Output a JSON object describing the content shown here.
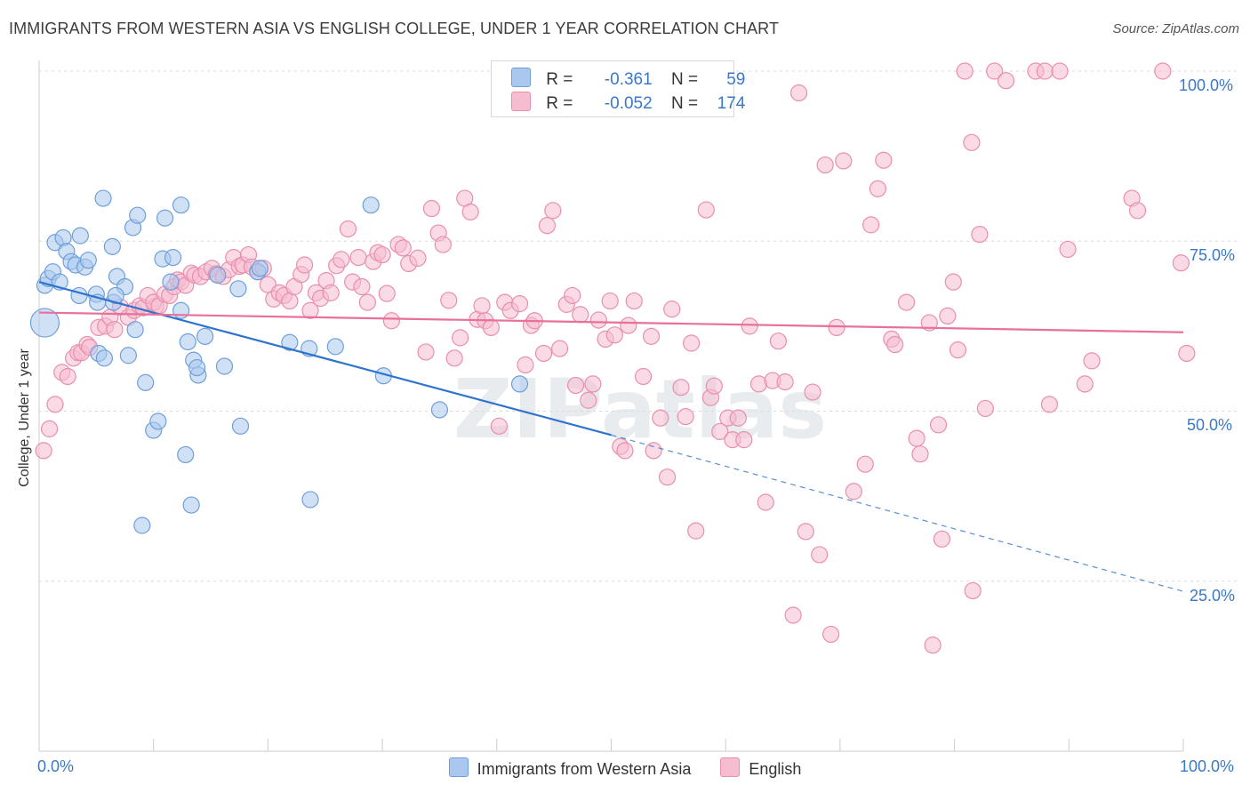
{
  "title": "IMMIGRANTS FROM WESTERN ASIA VS ENGLISH COLLEGE, UNDER 1 YEAR CORRELATION CHART",
  "source": "Source: ZipAtlas.com",
  "watermark": "ZIPatlas",
  "legend": {
    "rows": [
      {
        "r_label": "R =",
        "r_value": "-0.361",
        "n_label": "N =",
        "n_value": "59"
      },
      {
        "r_label": "R =",
        "r_value": "-0.052",
        "n_label": "N =",
        "n_value": "174"
      }
    ]
  },
  "bottom_legend": [
    "Immigrants from Western Asia",
    "English"
  ],
  "axis": {
    "x_min_label": "0.0%",
    "x_max_label": "100.0%",
    "y_labels": [
      "100.0%",
      "75.0%",
      "50.0%",
      "25.0%"
    ],
    "ylabel": "College, Under 1 year"
  },
  "colors": {
    "blue_fill": "#aac8ef",
    "blue_stroke": "#6f9fd9",
    "blue_line": "#2e74cf",
    "pink_fill": "#f6bcd0",
    "pink_stroke": "#e98fae",
    "pink_line": "#e8709a",
    "axis_label": "#3a78c9"
  },
  "chart_data": {
    "type": "scatter",
    "title": "IMMIGRANTS FROM WESTERN ASIA VS ENGLISH COLLEGE, UNDER 1 YEAR CORRELATION CHART",
    "xlabel": "",
    "ylabel": "College, Under 1 year",
    "xlim": [
      0,
      100
    ],
    "ylim": [
      0,
      100
    ],
    "series": [
      {
        "name": "Immigrants from Western Asia",
        "r": -0.361,
        "n": 59,
        "trend": {
          "x0": 0,
          "y0": 69.0,
          "x1": 50,
          "y1": 46.5,
          "dash_to_x": 100,
          "dash_to_y": 23.5
        },
        "points": [
          [
            0.5,
            63,
            "big"
          ],
          [
            0.5,
            68.5
          ],
          [
            0.8,
            69.5
          ],
          [
            1.2,
            70.5
          ],
          [
            1.8,
            69
          ],
          [
            1.4,
            74.8
          ],
          [
            2.1,
            75.5
          ],
          [
            2.4,
            73.5
          ],
          [
            2.8,
            72
          ],
          [
            3.6,
            75.8
          ],
          [
            3.2,
            71.5
          ],
          [
            4,
            71.2
          ],
          [
            4.3,
            72.2
          ],
          [
            3.5,
            67
          ],
          [
            5,
            67.2
          ],
          [
            5.1,
            66
          ],
          [
            5.2,
            58.5
          ],
          [
            5.7,
            57.8
          ],
          [
            5.6,
            81.3
          ],
          [
            6.4,
            74.2
          ],
          [
            6.8,
            69.8
          ],
          [
            6.5,
            66
          ],
          [
            7.5,
            68.3
          ],
          [
            6.7,
            67
          ],
          [
            7.8,
            58.2
          ],
          [
            8.2,
            77
          ],
          [
            8.4,
            62
          ],
          [
            8.6,
            78.8
          ],
          [
            9.0,
            33.2
          ],
          [
            9.3,
            54.2
          ],
          [
            10.0,
            47.2
          ],
          [
            10.4,
            48.5
          ],
          [
            10.8,
            72.4
          ],
          [
            11.0,
            78.4
          ],
          [
            11.5,
            69
          ],
          [
            11.7,
            72.6
          ],
          [
            12.4,
            80.3
          ],
          [
            12.4,
            64.8
          ],
          [
            12.8,
            43.6
          ],
          [
            13.0,
            60.2
          ],
          [
            13.3,
            36.2
          ],
          [
            13.5,
            57.5
          ],
          [
            13.9,
            55.3
          ],
          [
            13.8,
            56.4
          ],
          [
            14.5,
            61
          ],
          [
            15.6,
            70
          ],
          [
            16.2,
            56.6
          ],
          [
            17.4,
            68
          ],
          [
            17.6,
            47.8
          ],
          [
            19.1,
            70.5
          ],
          [
            19.3,
            71
          ],
          [
            21.9,
            60.1
          ],
          [
            23.6,
            59.2
          ],
          [
            23.7,
            37
          ],
          [
            25.9,
            59.5
          ],
          [
            29.0,
            80.3
          ],
          [
            30.1,
            55.2
          ],
          [
            35.0,
            50.2
          ],
          [
            42.0,
            54.0
          ]
        ]
      },
      {
        "name": "English",
        "r": -0.052,
        "n": 174,
        "trend": {
          "x0": 0,
          "y0": 64.5,
          "x1": 100,
          "y1": 61.6
        },
        "points": [
          [
            0.4,
            44.2
          ],
          [
            0.9,
            47.4
          ],
          [
            1.4,
            51
          ],
          [
            2.0,
            55.7
          ],
          [
            2.5,
            55.1
          ],
          [
            3.0,
            57.8
          ],
          [
            3.4,
            58.6
          ],
          [
            3.7,
            58.6
          ],
          [
            4.2,
            59.8
          ],
          [
            4.4,
            59.4
          ],
          [
            5.2,
            62.3
          ],
          [
            5.8,
            62.5
          ],
          [
            6.2,
            63.8
          ],
          [
            6.6,
            62
          ],
          [
            7.1,
            65.3
          ],
          [
            7.8,
            63.8
          ],
          [
            8.3,
            64.8
          ],
          [
            8.8,
            65.5
          ],
          [
            9.1,
            65.2
          ],
          [
            9.5,
            67
          ],
          [
            10.2,
            65.4
          ],
          [
            10.0,
            66
          ],
          [
            10.5,
            65.5
          ],
          [
            11,
            67.2
          ],
          [
            11.4,
            67
          ],
          [
            11.8,
            68.3
          ],
          [
            12.1,
            69.3
          ],
          [
            12.4,
            69
          ],
          [
            12.8,
            68.5
          ],
          [
            13.3,
            70.3
          ],
          [
            13.6,
            70
          ],
          [
            14.1,
            69.8
          ],
          [
            14.6,
            70.5
          ],
          [
            15.1,
            71
          ],
          [
            15.5,
            70.2
          ],
          [
            16.1,
            69.8
          ],
          [
            16.6,
            70.8
          ],
          [
            17.0,
            72.6
          ],
          [
            17.5,
            71.3
          ],
          [
            17.8,
            71.5
          ],
          [
            18.3,
            73
          ],
          [
            18.6,
            71.2
          ],
          [
            19.1,
            70.5
          ],
          [
            19.6,
            71
          ],
          [
            20.0,
            68.6
          ],
          [
            20.5,
            66.5
          ],
          [
            21.0,
            67.4
          ],
          [
            21.4,
            67
          ],
          [
            21.9,
            66.2
          ],
          [
            22.3,
            68.3
          ],
          [
            22.9,
            70.1
          ],
          [
            23.2,
            71.5
          ],
          [
            23.7,
            64.8
          ],
          [
            24.2,
            67.4
          ],
          [
            24.6,
            66.6
          ],
          [
            25.1,
            69.2
          ],
          [
            25.5,
            67.4
          ],
          [
            26,
            71.4
          ],
          [
            26.4,
            72.3
          ],
          [
            27.0,
            76.8
          ],
          [
            27.4,
            69
          ],
          [
            27.9,
            72.6
          ],
          [
            28.2,
            68.3
          ],
          [
            28.7,
            66
          ],
          [
            29.2,
            72
          ],
          [
            29.6,
            73.3
          ],
          [
            30.0,
            73
          ],
          [
            30.4,
            67.3
          ],
          [
            30.8,
            63.3
          ],
          [
            31.4,
            74.5
          ],
          [
            31.8,
            74
          ],
          [
            32.3,
            71.7
          ],
          [
            33.1,
            72.5
          ],
          [
            33.8,
            58.7
          ],
          [
            34.3,
            79.8
          ],
          [
            34.9,
            76.2
          ],
          [
            35.3,
            74.5
          ],
          [
            35.8,
            66.3
          ],
          [
            36.3,
            57.8
          ],
          [
            36.8,
            60.8
          ],
          [
            37.2,
            81.3
          ],
          [
            37.7,
            79.3
          ],
          [
            38.3,
            63.5
          ],
          [
            38.7,
            65.5
          ],
          [
            39.0,
            63.3
          ],
          [
            39.5,
            62.3
          ],
          [
            40.2,
            47.8
          ],
          [
            40.7,
            66
          ],
          [
            41.2,
            64.8
          ],
          [
            42.0,
            65.8
          ],
          [
            42.5,
            56.8
          ],
          [
            43.0,
            62.6
          ],
          [
            43.3,
            63.3
          ],
          [
            44.1,
            58.5
          ],
          [
            44.4,
            77.3
          ],
          [
            44.9,
            79.5
          ],
          [
            45.5,
            59.2
          ],
          [
            46.1,
            65.7
          ],
          [
            46.6,
            67
          ],
          [
            46.9,
            53.8
          ],
          [
            47.3,
            64.2
          ],
          [
            48.0,
            51.6
          ],
          [
            48.4,
            54
          ],
          [
            48.9,
            63.4
          ],
          [
            49.5,
            60.6
          ],
          [
            49.9,
            66.2
          ],
          [
            50.3,
            61.2
          ],
          [
            50.8,
            44.8
          ],
          [
            51.2,
            44.2
          ],
          [
            51.5,
            62.6
          ],
          [
            52.0,
            66.2
          ],
          [
            52.8,
            55.1
          ],
          [
            53.5,
            61
          ],
          [
            53.7,
            44.2
          ],
          [
            54.3,
            49
          ],
          [
            54.9,
            40.3
          ],
          [
            55.3,
            65
          ],
          [
            56.1,
            53.5
          ],
          [
            56.5,
            49.2
          ],
          [
            57.0,
            60
          ],
          [
            57.4,
            32.4
          ],
          [
            58.3,
            79.6
          ],
          [
            58.7,
            52
          ],
          [
            59.0,
            53.7
          ],
          [
            59.5,
            47
          ],
          [
            60.2,
            49
          ],
          [
            60.6,
            45.8
          ],
          [
            61.1,
            49
          ],
          [
            61.6,
            45.8
          ],
          [
            62.1,
            62.5
          ],
          [
            62.9,
            54
          ],
          [
            63.5,
            36.6
          ],
          [
            64.1,
            54.5
          ],
          [
            64.6,
            60.3
          ],
          [
            65.2,
            54.3
          ],
          [
            65.9,
            20
          ],
          [
            66.4,
            96.8
          ],
          [
            67.0,
            32.3
          ],
          [
            67.6,
            52.8
          ],
          [
            68.2,
            28.9
          ],
          [
            68.7,
            86.2
          ],
          [
            69.2,
            17.2
          ],
          [
            69.7,
            62.3
          ],
          [
            70.3,
            86.8
          ],
          [
            71.2,
            38.2
          ],
          [
            72.2,
            42.2
          ],
          [
            72.7,
            77.4
          ],
          [
            73.3,
            82.7
          ],
          [
            73.8,
            86.9
          ],
          [
            74.5,
            60.6
          ],
          [
            74.8,
            59.8
          ],
          [
            75.8,
            66
          ],
          [
            76.7,
            46
          ],
          [
            77.0,
            43.7
          ],
          [
            77.8,
            63
          ],
          [
            78.1,
            15.6
          ],
          [
            78.6,
            48
          ],
          [
            78.9,
            31.2
          ],
          [
            79.4,
            64
          ],
          [
            79.9,
            69
          ],
          [
            80.3,
            59
          ],
          [
            80.9,
            100
          ],
          [
            81.6,
            23.6
          ],
          [
            81.5,
            89.5
          ],
          [
            82.2,
            76
          ],
          [
            82.7,
            50.4
          ],
          [
            83.5,
            100
          ],
          [
            84.5,
            98.6
          ],
          [
            87.1,
            100
          ],
          [
            87.9,
            100
          ],
          [
            88.3,
            51
          ],
          [
            89.2,
            100
          ],
          [
            89.9,
            73.8
          ],
          [
            91.4,
            54
          ],
          [
            92.0,
            57.4
          ],
          [
            95.5,
            81.3
          ],
          [
            96.0,
            79.5
          ],
          [
            98.2,
            100
          ],
          [
            99.8,
            71.8
          ],
          [
            100.3,
            58.5
          ]
        ]
      }
    ]
  }
}
